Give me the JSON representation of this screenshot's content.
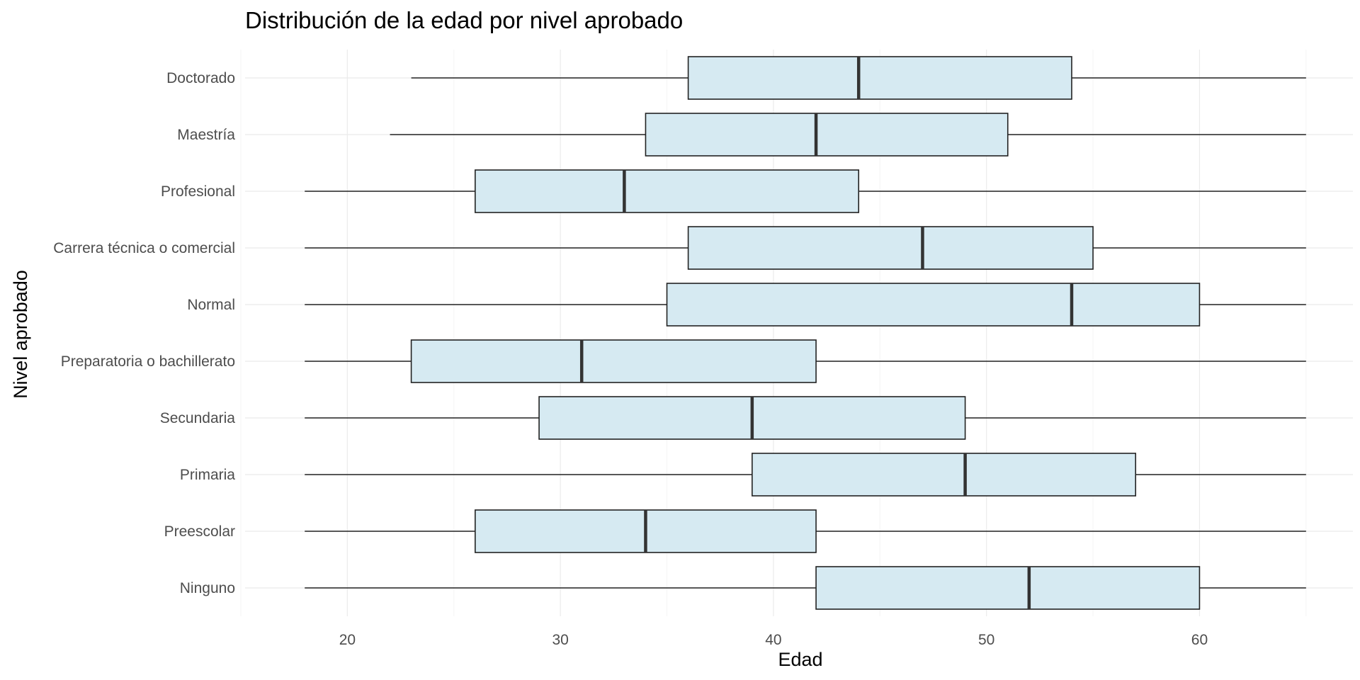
{
  "chart_data": {
    "type": "boxplot",
    "orientation": "horizontal",
    "title": "Distribución de la edad por nivel aprobado",
    "xlabel": "Edad",
    "ylabel": "Nivel aprobado",
    "xlim": [
      15.2,
      67.2
    ],
    "x_ticks": [
      20,
      30,
      40,
      50,
      60
    ],
    "grid": true,
    "box_fill": "#d6eaf2",
    "box_stroke": "#222222",
    "categories": [
      "Doctorado",
      "Maestría",
      "Profesional",
      "Carrera técnica o comercial",
      "Normal",
      "Preparatoria o bachillerato",
      "Secundaria",
      "Primaria",
      "Preescolar",
      "Ninguno"
    ],
    "boxes": [
      {
        "category": "Doctorado",
        "min": 23,
        "q1": 36,
        "median": 44,
        "q3": 54,
        "max": 65
      },
      {
        "category": "Maestría",
        "min": 22,
        "q1": 34,
        "median": 42,
        "q3": 51,
        "max": 65
      },
      {
        "category": "Profesional",
        "min": 18,
        "q1": 26,
        "median": 33,
        "q3": 44,
        "max": 65
      },
      {
        "category": "Carrera técnica o comercial",
        "min": 18,
        "q1": 36,
        "median": 47,
        "q3": 55,
        "max": 65
      },
      {
        "category": "Normal",
        "min": 18,
        "q1": 35,
        "median": 54,
        "q3": 60,
        "max": 65
      },
      {
        "category": "Preparatoria o bachillerato",
        "min": 18,
        "q1": 23,
        "median": 31,
        "q3": 42,
        "max": 65
      },
      {
        "category": "Secundaria",
        "min": 18,
        "q1": 29,
        "median": 39,
        "q3": 49,
        "max": 65
      },
      {
        "category": "Primaria",
        "min": 18,
        "q1": 39,
        "median": 49,
        "q3": 57,
        "max": 65
      },
      {
        "category": "Preescolar",
        "min": 18,
        "q1": 26,
        "median": 34,
        "q3": 42,
        "max": 65
      },
      {
        "category": "Ninguno",
        "min": 18,
        "q1": 42,
        "median": 52,
        "q3": 60,
        "max": 65
      }
    ]
  }
}
